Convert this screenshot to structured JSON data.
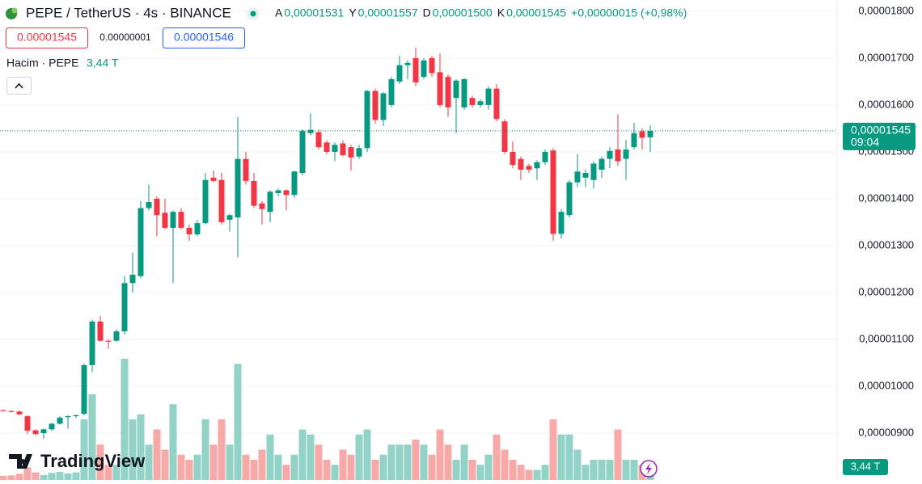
{
  "chart_data": {
    "type": "candlestick",
    "title": "PEPE / TetherUS · 4s · BINANCE",
    "legend_values": [
      {
        "key": "A",
        "value": 1.531e-05,
        "label": "0,00001531"
      },
      {
        "key": "Y",
        "value": 1.557e-05,
        "label": "0,00001557"
      },
      {
        "key": "D",
        "value": 1.5e-05,
        "label": "0,00001500"
      },
      {
        "key": "K",
        "value": 1.545e-05,
        "label": "0,00001545"
      }
    ],
    "change": {
      "value": 1.5e-07,
      "label": "+0,00000015 (+0,98%)"
    },
    "sell_price": "0.00001545",
    "spread": "0.00000001",
    "buy_price": "0.00001546",
    "volume_title": "Hacim · PEPE",
    "volume_last": {
      "value": 3.44,
      "label": "3,44 T"
    },
    "last_price": {
      "value": 1.545e-05,
      "label": "0,00001545"
    },
    "countdown": "09:04",
    "brand": "TradingView",
    "up_color": "#089981",
    "down_color": "#f23645",
    "volume_up_color": "#92d2c7",
    "volume_down_color": "#f7a9a7",
    "grid": true,
    "ylim": [
      8e-06,
      1.824e-05
    ],
    "yticks": [
      {
        "value": 1.8e-05,
        "label": "0,00001800"
      },
      {
        "value": 1.7e-05,
        "label": "0,00001700"
      },
      {
        "value": 1.6e-05,
        "label": "0,00001600"
      },
      {
        "value": 1.5e-05,
        "label": "0,00001500"
      },
      {
        "value": 1.4e-05,
        "label": "0,00001400"
      },
      {
        "value": 1.3e-05,
        "label": "0,00001300"
      },
      {
        "value": 1.2e-05,
        "label": "0,00001200"
      },
      {
        "value": 1.1e-05,
        "label": "0,00001100"
      },
      {
        "value": 1e-05,
        "label": "0,00001000"
      },
      {
        "value": 9e-06,
        "label": "0,00000900"
      }
    ],
    "open": [
      9.49e-06,
      9.47e-06,
      9.46e-06,
      9.36e-06,
      9.06e-06,
      9e-06,
      9.08e-06,
      9.2e-06,
      9.34e-06,
      9.36e-06,
      9.41e-06,
      1.045e-05,
      1.138e-05,
      1.097e-05,
      1.097e-05,
      1.117e-05,
      1.22e-05,
      1.235e-05,
      1.38e-05,
      1.4e-05,
      1.37e-05,
      1.338e-05,
      1.372e-05,
      1.338e-05,
      1.324e-05,
      1.348e-05,
      1.445e-05,
      1.44e-05,
      1.355e-05,
      1.36e-05,
      1.485e-05,
      1.438e-05,
      1.39e-05,
      1.372e-05,
      1.412e-05,
      1.418e-05,
      1.408e-05,
      1.455e-05,
      1.54e-05,
      1.542e-05,
      1.52e-05,
      1.5e-05,
      1.518e-05,
      1.51e-05,
      1.49e-05,
      1.508e-05,
      1.63e-05,
      1.568e-05,
      1.6e-05,
      1.65e-05,
      1.685e-05,
      1.7e-05,
      1.66e-05,
      1.7e-05,
      1.67e-05,
      1.66e-05,
      1.615e-05,
      1.595e-05,
      1.615e-05,
      1.6e-05,
      1.6e-05,
      1.635e-05,
      1.565e-05,
      1.5e-05,
      1.485e-05,
      1.47e-05,
      1.465e-05,
      1.478e-05,
      1.503e-05,
      1.325e-05,
      1.365e-05,
      1.435e-05,
      1.445e-05,
      1.44e-05,
      1.462e-05,
      1.485e-05,
      1.505e-05,
      1.485e-05,
      1.51e-05,
      1.544e-05,
      1.531e-05
    ],
    "high": [
      9.5e-06,
      9.49e-06,
      9.48e-06,
      9.38e-06,
      9.08e-06,
      9.1e-06,
      9.22e-06,
      9.36e-06,
      9.38e-06,
      9.4e-06,
      1.048e-05,
      1.142e-05,
      1.15e-05,
      1.1e-05,
      1.122e-05,
      1.235e-05,
      1.285e-05,
      1.395e-05,
      1.43e-05,
      1.405e-05,
      1.4e-05,
      1.375e-05,
      1.38e-05,
      1.345e-05,
      1.355e-05,
      1.455e-05,
      1.46e-05,
      1.455e-05,
      1.368e-05,
      1.575e-05,
      1.5e-05,
      1.455e-05,
      1.395e-05,
      1.418e-05,
      1.422e-05,
      1.42e-05,
      1.46e-05,
      1.548e-05,
      1.582e-05,
      1.548e-05,
      1.525e-05,
      1.52e-05,
      1.525e-05,
      1.515e-05,
      1.515e-05,
      1.632e-05,
      1.635e-05,
      1.628e-05,
      1.66e-05,
      1.705e-05,
      1.695e-05,
      1.722e-05,
      1.7e-05,
      1.705e-05,
      1.71e-05,
      1.665e-05,
      1.655e-05,
      1.658e-05,
      1.62e-05,
      1.612e-05,
      1.64e-05,
      1.645e-05,
      1.57e-05,
      1.522e-05,
      1.49e-05,
      1.475e-05,
      1.482e-05,
      1.505e-05,
      1.508e-05,
      1.378e-05,
      1.44e-05,
      1.495e-05,
      1.462e-05,
      1.48e-05,
      1.49e-05,
      1.51e-05,
      1.58e-05,
      1.525e-05,
      1.562e-05,
      1.55e-05,
      1.557e-05
    ],
    "low": [
      9.46e-06,
      9.44e-06,
      9.38e-06,
      8.98e-06,
      8.95e-06,
      8.88e-06,
      9.05e-06,
      9.18e-06,
      9.1e-06,
      9.33e-06,
      9.38e-06,
      1.03e-05,
      1.095e-05,
      1.08e-05,
      1.095e-05,
      1.11e-05,
      1.2e-05,
      1.23e-05,
      1.375e-05,
      1.32e-05,
      1.335e-05,
      1.22e-05,
      1.335e-05,
      1.31e-05,
      1.32e-05,
      1.345e-05,
      1.435e-05,
      1.345e-05,
      1.33e-05,
      1.275e-05,
      1.43e-05,
      1.38e-05,
      1.345e-05,
      1.35e-05,
      1.405e-05,
      1.375e-05,
      1.402e-05,
      1.45e-05,
      1.535e-05,
      1.505e-05,
      1.495e-05,
      1.48e-05,
      1.49e-05,
      1.46e-05,
      1.485e-05,
      1.5e-05,
      1.56e-05,
      1.555e-05,
      1.595e-05,
      1.645e-05,
      1.655e-05,
      1.64e-05,
      1.655e-05,
      1.66e-05,
      1.595e-05,
      1.575e-05,
      1.54e-05,
      1.59e-05,
      1.595e-05,
      1.595e-05,
      1.59e-05,
      1.565e-05,
      1.495e-05,
      1.465e-05,
      1.44e-05,
      1.455e-05,
      1.44e-05,
      1.472e-05,
      1.31e-05,
      1.315e-05,
      1.36e-05,
      1.425e-05,
      1.425e-05,
      1.422e-05,
      1.445e-05,
      1.465e-05,
      1.47e-05,
      1.44e-05,
      1.505e-05,
      1.505e-05,
      1.5e-05
    ],
    "close": [
      9.47e-06,
      9.45e-06,
      9.4e-06,
      9.05e-06,
      8.98e-06,
      9.08e-06,
      9.2e-06,
      9.33e-06,
      9.36e-06,
      9.38e-06,
      1.045e-05,
      1.138e-05,
      1.097e-05,
      1.095e-05,
      1.117e-05,
      1.22e-05,
      1.238e-05,
      1.38e-05,
      1.393e-05,
      1.365e-05,
      1.338e-05,
      1.372e-05,
      1.338e-05,
      1.324e-05,
      1.348e-05,
      1.44e-05,
      1.438e-05,
      1.35e-05,
      1.365e-05,
      1.485e-05,
      1.438e-05,
      1.385e-05,
      1.378e-05,
      1.415e-05,
      1.418e-05,
      1.408e-05,
      1.458e-05,
      1.545e-05,
      1.547e-05,
      1.51e-05,
      1.5e-05,
      1.515e-05,
      1.493e-05,
      1.488e-05,
      1.508e-05,
      1.63e-05,
      1.568e-05,
      1.625e-05,
      1.655e-05,
      1.685e-05,
      1.69e-05,
      1.648e-05,
      1.695e-05,
      1.668e-05,
      1.6e-05,
      1.595e-05,
      1.652e-05,
      1.655e-05,
      1.6e-05,
      1.608e-05,
      1.635e-05,
      1.57e-05,
      1.5e-05,
      1.472e-05,
      1.462e-05,
      1.462e-05,
      1.478e-05,
      1.5e-05,
      1.325e-05,
      1.372e-05,
      1.435e-05,
      1.458e-05,
      1.455e-05,
      1.475e-05,
      1.485e-05,
      1.502e-05,
      1.48e-05,
      1.505e-05,
      1.54e-05,
      1.53e-05,
      1.545e-05
    ],
    "volume": [
      0.8,
      0.9,
      1.2,
      2.5,
      1.5,
      1.0,
      1.4,
      1.6,
      1.3,
      1.5,
      12,
      17,
      7,
      3,
      3,
      24,
      12,
      13,
      7,
      10,
      6,
      15,
      5,
      4,
      5,
      12,
      7,
      12,
      7,
      23,
      5,
      4,
      6,
      9,
      5,
      3,
      5,
      10,
      9,
      7,
      4,
      3,
      6,
      5,
      9,
      10,
      4,
      5,
      7,
      7,
      7,
      8,
      7,
      5,
      10,
      7,
      4,
      7,
      4,
      3,
      5,
      9,
      6,
      4,
      3,
      2,
      2,
      3,
      12,
      9,
      9,
      6,
      3,
      4,
      4,
      4,
      10,
      4,
      4,
      3,
      3.44
    ]
  }
}
